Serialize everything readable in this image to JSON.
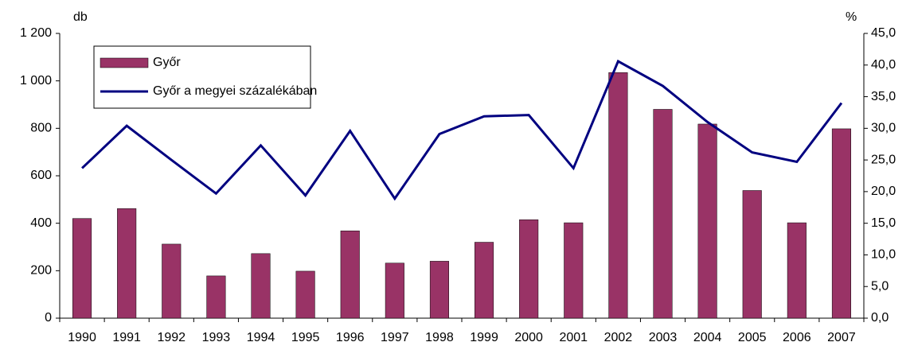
{
  "chart_data": {
    "type": "bar",
    "y_label": "db",
    "y2_label": "%",
    "categories": [
      "1990",
      "1991",
      "1992",
      "1993",
      "1994",
      "1995",
      "1996",
      "1997",
      "1998",
      "1999",
      "2000",
      "2001",
      "2002",
      "2003",
      "2004",
      "2005",
      "2006",
      "2007"
    ],
    "series": [
      {
        "name": "Győr",
        "type": "bar",
        "color": "#993366",
        "values": [
          420,
          462,
          312,
          178,
          272,
          198,
          368,
          232,
          240,
          320,
          415,
          402,
          1035,
          880,
          818,
          538,
          402,
          798
        ]
      },
      {
        "name": "Győr a megyei százalékában",
        "type": "line",
        "axis": "y2",
        "color": "#000080",
        "values": [
          23.7,
          30.4,
          25.0,
          19.7,
          27.3,
          19.4,
          29.6,
          18.9,
          29.1,
          31.9,
          32.1,
          23.7,
          40.6,
          36.7,
          31.0,
          26.2,
          24.7,
          34.0
        ]
      }
    ],
    "ylim": [
      0,
      1200
    ],
    "yticks": [
      0,
      200,
      400,
      600,
      800,
      {
        "value": 1000,
        "label": "1 000"
      },
      {
        "value": 1200,
        "label": "1 200"
      }
    ],
    "y2lim": [
      0,
      45
    ],
    "y2ticks": [
      {
        "value": 0,
        "label": "0,0"
      },
      {
        "value": 5,
        "label": "5,0"
      },
      {
        "value": 10,
        "label": "10,0"
      },
      {
        "value": 15,
        "label": "15,0"
      },
      {
        "value": 20,
        "label": "20,0"
      },
      {
        "value": 25,
        "label": "25,0"
      },
      {
        "value": 30,
        "label": "30,0"
      },
      {
        "value": 35,
        "label": "35,0"
      },
      {
        "value": 40,
        "label": "40,0"
      },
      {
        "value": 45,
        "label": "45,0"
      }
    ],
    "legend": "top-left"
  }
}
